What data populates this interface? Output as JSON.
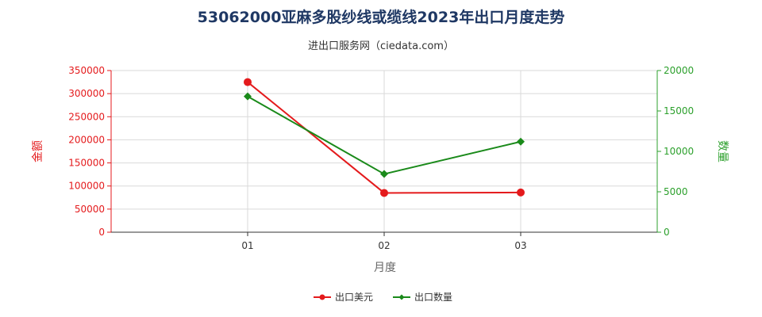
{
  "chart_data": {
    "type": "line",
    "title": "53062000亚麻多股纱线或缆线2023年出口月度走势",
    "subtitle": "进出口服务网（ciedata.com）",
    "xlabel": "月度",
    "ylabel_left": "金额",
    "ylabel_right": "数量",
    "categories": [
      "01",
      "02",
      "03"
    ],
    "y_left": {
      "min": 0,
      "max": 350000,
      "ticks": [
        0,
        50000,
        100000,
        150000,
        200000,
        250000,
        300000,
        350000
      ]
    },
    "y_right": {
      "min": 0,
      "max": 20000,
      "ticks": [
        0,
        5000,
        10000,
        15000,
        20000
      ]
    },
    "series": [
      {
        "name": "出口美元",
        "axis": "left",
        "color": "#e41a1c",
        "marker": "circle",
        "values": [
          325000,
          85000,
          86000
        ]
      },
      {
        "name": "出口数量",
        "axis": "right",
        "color": "#1a8a1a",
        "marker": "diamond",
        "values": [
          16800,
          7200,
          11200
        ]
      }
    ],
    "grid": true,
    "legend_position": "bottom-center"
  }
}
